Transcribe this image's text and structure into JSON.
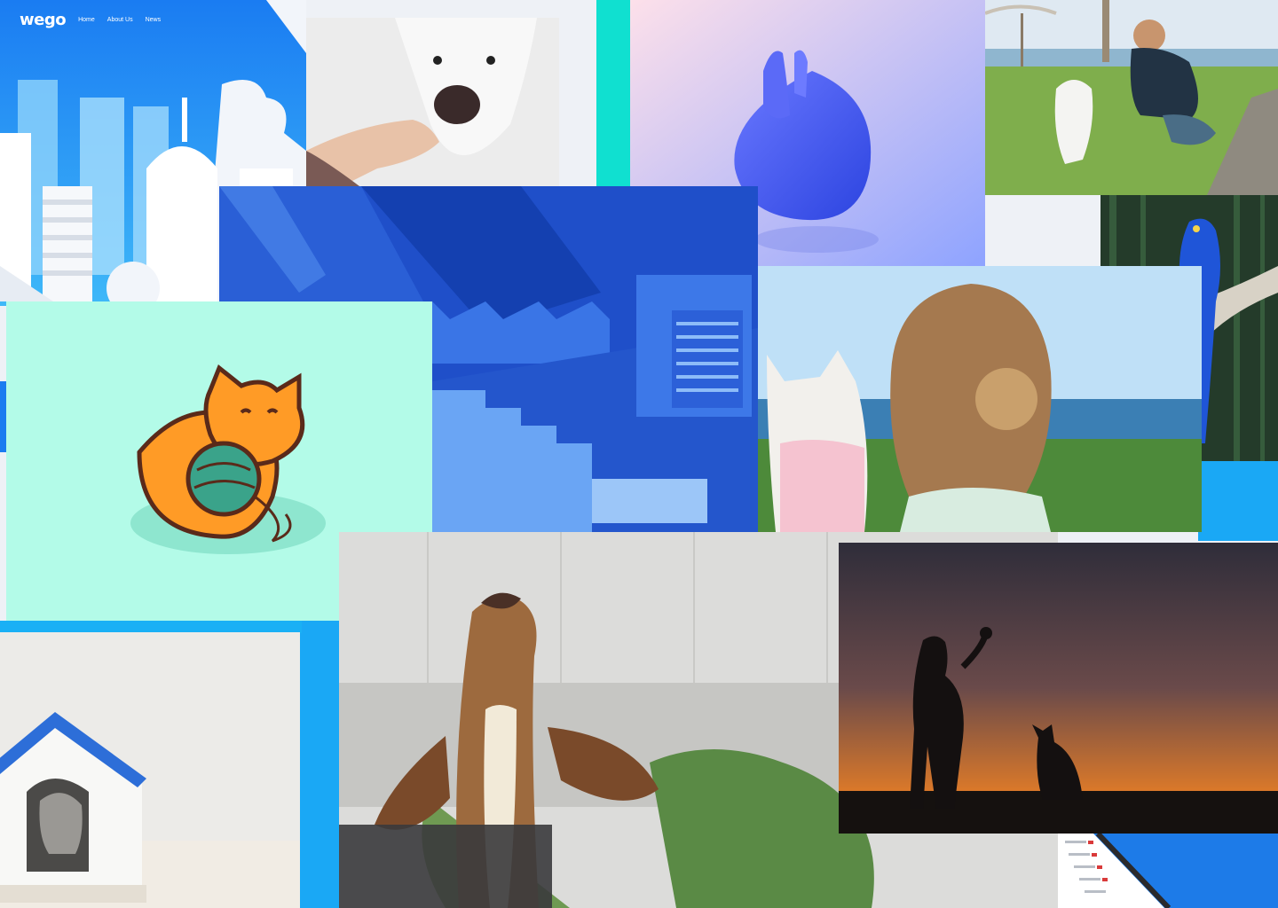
{
  "site": {
    "logo": "wego",
    "nav": [
      {
        "label": "Home"
      },
      {
        "label": "About Us"
      },
      {
        "label": "News"
      }
    ]
  },
  "tiles": [
    {
      "name": "city-illustration-tile",
      "subject": "illustrated blue city skyline"
    },
    {
      "name": "dog-treat-photo-tile",
      "subject": "white dog taking treat from hand"
    },
    {
      "name": "blue-blob-illustration-tile",
      "subject": "blue hand holding blob"
    },
    {
      "name": "man-puppy-photo-tile",
      "subject": "man playing with puppy on lawn"
    },
    {
      "name": "blue-stairs-photo-tile",
      "subject": "blue architecture stairs"
    },
    {
      "name": "macaw-photo-tile",
      "subject": "blue macaw on branch"
    },
    {
      "name": "cat-yarn-illustration-tile",
      "subject": "orange cat with yarn ball"
    },
    {
      "name": "girl-dog-photo-tile",
      "subject": "girl with dog looking at sea"
    },
    {
      "name": "dog-house-photo-tile",
      "subject": "dog in white dog house"
    },
    {
      "name": "beagle-photo-tile",
      "subject": "brown dog looking up"
    },
    {
      "name": "sunset-silhouette-photo-tile",
      "subject": "girl and dog silhouette at sunset"
    },
    {
      "name": "tablet-ui-tile",
      "subject": "tablet showing list ui"
    }
  ],
  "colors": {
    "accent_cyan": "#10e0d0",
    "accent_blue": "#1a8cf0",
    "mint": "#b3fbe8"
  }
}
